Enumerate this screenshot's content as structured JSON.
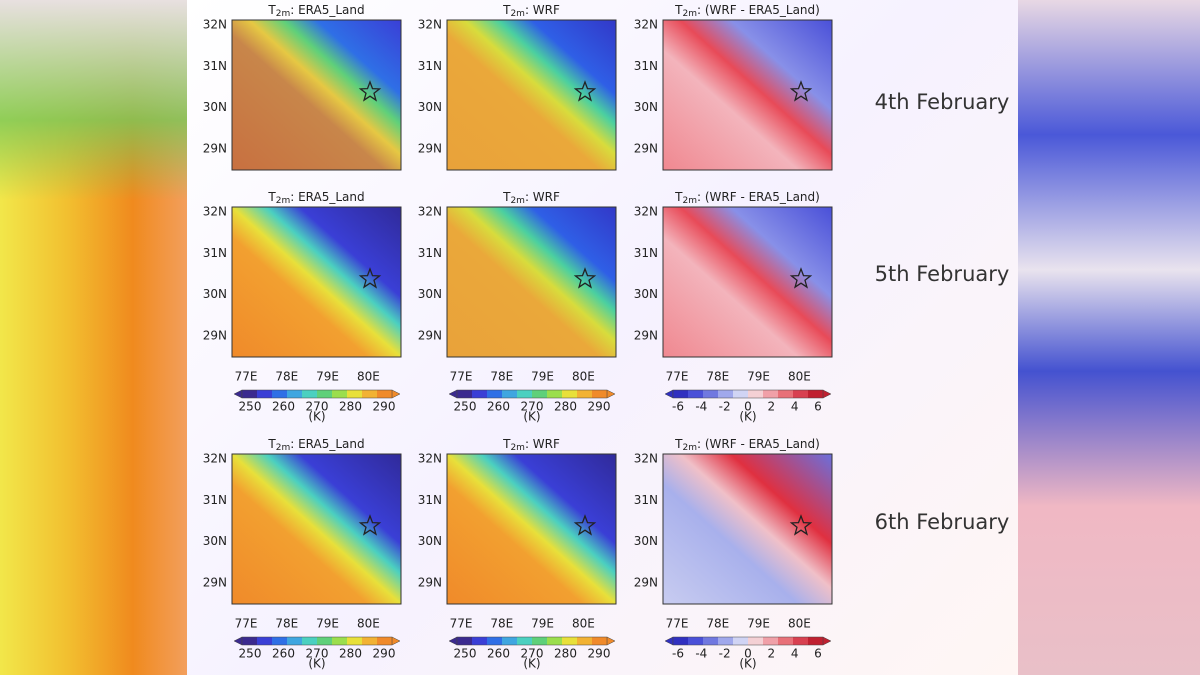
{
  "figure": {
    "column_titles": [
      {
        "base": "T",
        "sub": "2m",
        "rest": ": ERA5_Land"
      },
      {
        "base": "T",
        "sub": "2m",
        "rest": ": WRF"
      },
      {
        "base": "T",
        "sub": "2m",
        "rest": ": (WRF - ERA5_Land)"
      }
    ],
    "row_labels": [
      "4th February",
      "5th February",
      "6th February"
    ],
    "lat_labels": [
      "32N",
      "31N",
      "30N",
      "29N"
    ],
    "lon_labels": [
      "77E",
      "78E",
      "79E",
      "80E"
    ],
    "temperature_colorbar": {
      "labels": [
        "250",
        "260",
        "270",
        "280",
        "290"
      ],
      "unit": "(K)"
    },
    "difference_colorbar": {
      "labels": [
        "-6",
        "-4",
        "-2",
        "0",
        "2",
        "4",
        "6"
      ],
      "unit": "(K)"
    }
  }
}
